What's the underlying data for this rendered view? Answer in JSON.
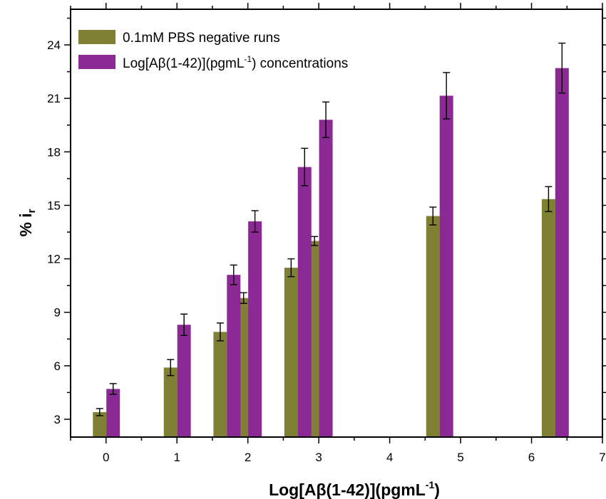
{
  "chart_data": {
    "type": "bar",
    "xlabel": "Log[Aβ(1-42)](pgmL",
    "xlabel_sup": "-1",
    "xlabel_suffix": ")",
    "ylabel": "% i",
    "ylabel_sub": "r",
    "xlim": [
      -0.5,
      7
    ],
    "ylim": [
      2,
      26
    ],
    "xticks": [
      "0",
      "1",
      "2",
      "3",
      "4",
      "5",
      "6",
      "7"
    ],
    "yticks": [
      "3",
      "6",
      "9",
      "12",
      "15",
      "18",
      "21",
      "24"
    ],
    "legend_position": "top-left",
    "series": [
      {
        "name": "0.1mM PBS negative runs",
        "color": "#808034",
        "points": [
          {
            "x": -0.09,
            "value": 3.4,
            "error": 0.2
          },
          {
            "x": 0.91,
            "value": 5.9,
            "error": 0.45
          },
          {
            "x": 1.61,
            "value": 7.9,
            "error": 0.5
          },
          {
            "x": 1.94,
            "value": 9.8,
            "error": 0.3
          },
          {
            "x": 2.61,
            "value": 11.5,
            "error": 0.5
          },
          {
            "x": 2.94,
            "value": 13.0,
            "error": 0.25
          },
          {
            "x": 4.61,
            "value": 14.4,
            "error": 0.5
          },
          {
            "x": 6.24,
            "value": 15.35,
            "error": 0.7
          }
        ]
      },
      {
        "name": "Log[Aβ(1-42)](pgmL",
        "name_sup": "-1",
        "name_suffix": ") concentrations",
        "color": "#8B2A94",
        "points": [
          {
            "x": 0.1,
            "value": 4.7,
            "error": 0.3
          },
          {
            "x": 1.1,
            "value": 8.3,
            "error": 0.6
          },
          {
            "x": 1.8,
            "value": 11.1,
            "error": 0.55
          },
          {
            "x": 2.1,
            "value": 14.1,
            "error": 0.6
          },
          {
            "x": 2.8,
            "value": 17.15,
            "error": 1.05
          },
          {
            "x": 3.1,
            "value": 19.8,
            "error": 1.0
          },
          {
            "x": 4.8,
            "value": 21.15,
            "error": 1.3
          },
          {
            "x": 6.43,
            "value": 22.7,
            "error": 1.4
          }
        ]
      }
    ]
  }
}
